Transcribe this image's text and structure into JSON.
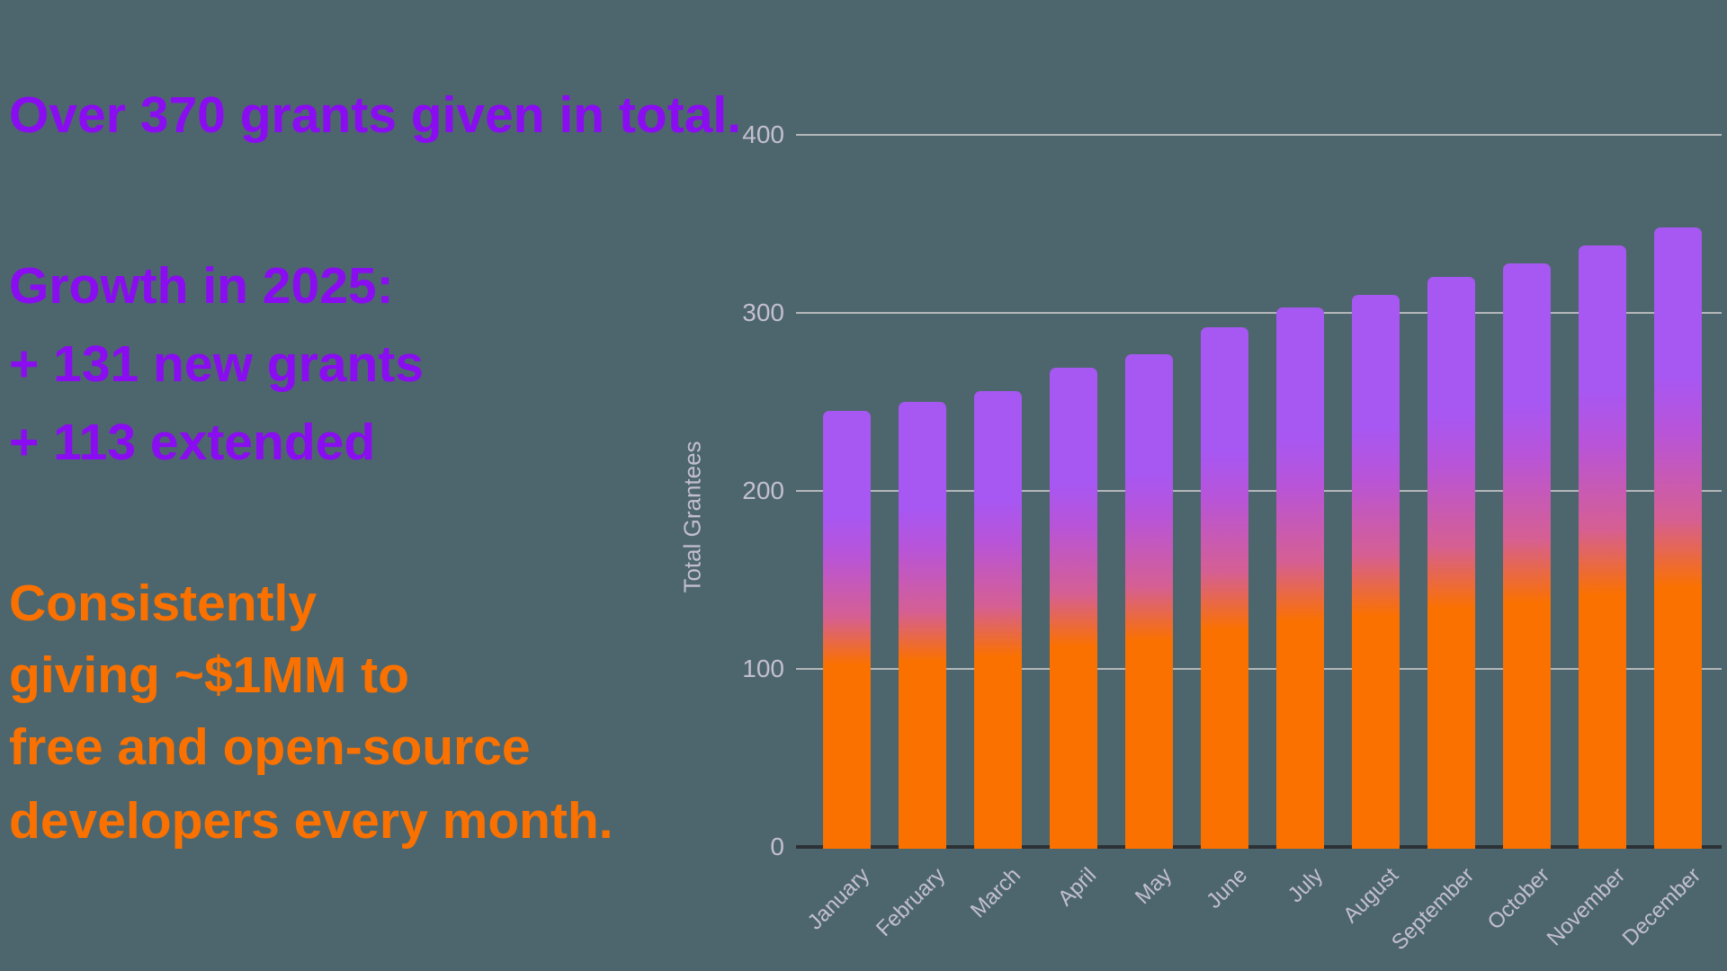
{
  "background_color": "#4d666e",
  "colors": {
    "purple_text": "#8a0cf0",
    "orange_text": "#fa7100",
    "bar_top_purple": "#a757f2",
    "bar_bottom_orange": "#fa7100",
    "gridline": "#b4b7ba",
    "axis_baseline": "#2c3136",
    "tick_label": "#c3bfcf"
  },
  "left_panel": {
    "lines": [
      {
        "text": "Over 370 grants given in total.",
        "color": "purple"
      },
      {
        "text": "Growth in 2025:",
        "color": "purple"
      },
      {
        "text": "+ 131 new grants",
        "color": "purple"
      },
      {
        "text": "+ 113 extended",
        "color": "purple"
      },
      {
        "text": "Consistently",
        "color": "orange"
      },
      {
        "text": "giving ~$1MM to",
        "color": "orange"
      },
      {
        "text": "free and open-source",
        "color": "orange"
      },
      {
        "text": "developers every month.",
        "color": "orange"
      }
    ]
  },
  "chart_data": {
    "type": "bar",
    "title": "",
    "xlabel": "",
    "ylabel": "Total Grantees",
    "categories": [
      "January",
      "February",
      "March",
      "April",
      "May",
      "June",
      "July",
      "August",
      "September",
      "October",
      "November",
      "December"
    ],
    "values": [
      245,
      250,
      256,
      269,
      277,
      292,
      303,
      310,
      320,
      328,
      338,
      348
    ],
    "ylim": [
      0,
      400
    ],
    "yticks": [
      0,
      100,
      200,
      300,
      400
    ],
    "grid": true,
    "legend": "none",
    "bar_gradient_top_to_bottom": [
      "#a757f2",
      "#fa7100"
    ]
  }
}
